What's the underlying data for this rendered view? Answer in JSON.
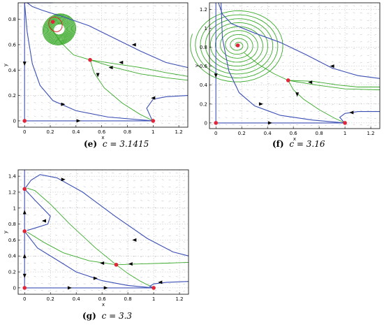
{
  "chart_data": [
    {
      "id": "e",
      "type": "line",
      "caption_label": "(e)",
      "caption_param": "c = 3.1415",
      "xlabel": "x",
      "ylabel": "y",
      "xlim": [
        -0.05,
        1.27
      ],
      "ylim": [
        -0.05,
        0.93
      ],
      "xticks": [
        0,
        0.2,
        0.4,
        0.6,
        0.8,
        1,
        1.2
      ],
      "xtick_labels": [
        "0",
        "0.2",
        "0.4",
        "0.6",
        "0.8",
        "1",
        "1.2"
      ],
      "yticks": [
        0,
        0.2,
        0.4,
        0.6,
        0.8
      ],
      "ytick_labels": [
        "0",
        "0.2",
        "0.4",
        "0.6",
        "0.8"
      ],
      "grid": true,
      "equilibria": [
        {
          "x": 0,
          "y": 0
        },
        {
          "x": 1,
          "y": 0
        },
        {
          "x": 0.51,
          "y": 0.48
        },
        {
          "x": 0.22,
          "y": 0.78
        }
      ],
      "limit_cycle": {
        "cx": 0.24,
        "cy": 0.76,
        "rx": 0.05,
        "ry": 0.06,
        "color": "#d62020"
      },
      "blue_curves": [
        [
          [
            0.02,
            0.93
          ],
          [
            0.06,
            0.9
          ],
          [
            0.14,
            0.87
          ],
          [
            0.3,
            0.82
          ],
          [
            0.5,
            0.75
          ],
          [
            0.7,
            0.65
          ],
          [
            0.9,
            0.55
          ],
          [
            1.1,
            0.46
          ],
          [
            1.27,
            0.42
          ]
        ],
        [
          [
            0.0,
            0.93
          ],
          [
            0.02,
            0.7
          ],
          [
            0.06,
            0.45
          ],
          [
            0.12,
            0.28
          ],
          [
            0.22,
            0.16
          ],
          [
            0.4,
            0.08
          ],
          [
            0.65,
            0.03
          ],
          [
            1.0,
            0.0
          ]
        ],
        [
          [
            0.0,
            0.93
          ],
          [
            0.1,
            0.93
          ],
          [
            0.22,
            0.93
          ]
        ],
        [
          [
            1.27,
            0.2
          ],
          [
            1.1,
            0.19
          ],
          [
            1.0,
            0.17
          ],
          [
            0.95,
            0.1
          ],
          [
            0.99,
            0.01
          ]
        ],
        [
          [
            0.0,
            0.0
          ],
          [
            0.0,
            0.93
          ]
        ],
        [
          [
            0.0,
            0.0
          ],
          [
            1.0,
            0.0
          ]
        ]
      ],
      "green_curves": [
        [
          [
            0.51,
            0.48
          ],
          [
            0.38,
            0.52
          ],
          [
            0.28,
            0.62
          ],
          [
            0.2,
            0.74
          ]
        ],
        [
          [
            0.51,
            0.48
          ],
          [
            0.7,
            0.45
          ],
          [
            0.9,
            0.42
          ],
          [
            1.1,
            0.38
          ],
          [
            1.27,
            0.35
          ]
        ],
        [
          [
            0.51,
            0.48
          ],
          [
            0.7,
            0.42
          ],
          [
            0.9,
            0.37
          ],
          [
            1.1,
            0.34
          ],
          [
            1.27,
            0.32
          ]
        ],
        [
          [
            0.51,
            0.48
          ],
          [
            0.54,
            0.38
          ],
          [
            0.62,
            0.26
          ],
          [
            0.76,
            0.14
          ],
          [
            0.9,
            0.05
          ],
          [
            1.0,
            0.0
          ]
        ]
      ],
      "green_band": {
        "cx": 0.27,
        "cy": 0.72,
        "rx": 0.13,
        "ry": 0.12
      },
      "arrows": [
        {
          "x": 0.0,
          "y": 0.45,
          "dir": "down"
        },
        {
          "x": 0.3,
          "y": 0.13,
          "dir": "right"
        },
        {
          "x": 0.42,
          "y": 0.0,
          "dir": "right"
        },
        {
          "x": 0.85,
          "y": 0.6,
          "dir": "left"
        },
        {
          "x": 0.75,
          "y": 0.46,
          "dir": "left"
        },
        {
          "x": 0.67,
          "y": 0.42,
          "dir": "left"
        },
        {
          "x": 0.57,
          "y": 0.36,
          "dir": "down"
        },
        {
          "x": 1.0,
          "y": 0.18,
          "dir": "left"
        }
      ]
    },
    {
      "id": "f",
      "type": "line",
      "caption_label": "(f)",
      "caption_param": "c = 3.16",
      "xlabel": "x",
      "ylabel": "y",
      "xlim": [
        -0.05,
        1.27
      ],
      "ylim": [
        -0.06,
        1.27
      ],
      "xticks": [
        0,
        0.2,
        0.4,
        0.6,
        0.8,
        1,
        1.2
      ],
      "xtick_labels": [
        "0",
        "0.2",
        "0.4",
        "0.6",
        "0.8",
        "1",
        "1.2"
      ],
      "yticks": [
        0,
        0.2,
        0.4,
        0.6,
        0.8,
        1,
        1.2
      ],
      "ytick_labels": [
        "0",
        "0.2",
        "0.4",
        "0.6",
        "0.8",
        "1",
        "1.2"
      ],
      "grid": true,
      "equilibria": [
        {
          "x": 0,
          "y": 0
        },
        {
          "x": 1,
          "y": 0
        },
        {
          "x": 0.56,
          "y": 0.45
        },
        {
          "x": 0.17,
          "y": 0.82
        }
      ],
      "spiral": {
        "cx": 0.17,
        "cy": 0.82
      },
      "blue_curves": [
        [
          [
            0.02,
            1.27
          ],
          [
            0.05,
            1.15
          ],
          [
            0.12,
            1.05
          ],
          [
            0.3,
            0.95
          ],
          [
            0.5,
            0.85
          ],
          [
            0.7,
            0.72
          ],
          [
            0.9,
            0.58
          ],
          [
            1.1,
            0.5
          ],
          [
            1.27,
            0.47
          ]
        ],
        [
          [
            0.04,
            1.27
          ],
          [
            0.05,
            0.9
          ],
          [
            0.1,
            0.55
          ],
          [
            0.18,
            0.32
          ],
          [
            0.3,
            0.18
          ],
          [
            0.5,
            0.08
          ],
          [
            0.75,
            0.03
          ],
          [
            1.0,
            0.0
          ]
        ],
        [
          [
            1.27,
            0.12
          ],
          [
            1.1,
            0.12
          ],
          [
            1.0,
            0.1
          ],
          [
            0.96,
            0.06
          ],
          [
            0.99,
            0.01
          ]
        ],
        [
          [
            0.0,
            0.0
          ],
          [
            0.0,
            1.27
          ]
        ],
        [
          [
            0.0,
            0.0
          ],
          [
            1.0,
            0.0
          ]
        ]
      ],
      "green_curves": [
        [
          [
            0.56,
            0.45
          ],
          [
            0.45,
            0.52
          ],
          [
            0.33,
            0.62
          ],
          [
            0.22,
            0.74
          ]
        ],
        [
          [
            0.56,
            0.45
          ],
          [
            0.75,
            0.44
          ],
          [
            0.95,
            0.4
          ],
          [
            1.1,
            0.38
          ],
          [
            1.27,
            0.38
          ]
        ],
        [
          [
            0.56,
            0.45
          ],
          [
            0.78,
            0.4
          ],
          [
            1.0,
            0.36
          ],
          [
            1.27,
            0.35
          ]
        ],
        [
          [
            0.56,
            0.45
          ],
          [
            0.6,
            0.35
          ],
          [
            0.68,
            0.25
          ],
          [
            0.8,
            0.14
          ],
          [
            0.92,
            0.05
          ],
          [
            1.0,
            0.0
          ]
        ]
      ],
      "arrows": [
        {
          "x": 0.0,
          "y": 0.5,
          "dir": "down"
        },
        {
          "x": 0.35,
          "y": 0.2,
          "dir": "right"
        },
        {
          "x": 0.42,
          "y": 0.0,
          "dir": "right"
        },
        {
          "x": 0.9,
          "y": 0.6,
          "dir": "left"
        },
        {
          "x": 0.73,
          "y": 0.43,
          "dir": "left"
        },
        {
          "x": 0.63,
          "y": 0.3,
          "dir": "down"
        },
        {
          "x": 1.05,
          "y": 0.11,
          "dir": "left"
        }
      ]
    },
    {
      "id": "g",
      "type": "line",
      "caption_label": "(g)",
      "caption_param": "c = 3.3",
      "xlabel": "x",
      "ylabel": "y",
      "xlim": [
        -0.05,
        1.27
      ],
      "ylim": [
        -0.08,
        1.48
      ],
      "xticks": [
        0,
        0.2,
        0.4,
        0.6,
        0.8,
        1,
        1.2
      ],
      "xtick_labels": [
        "0",
        "0.2",
        "0.4",
        "0.6",
        "0.8",
        "1",
        "1.2"
      ],
      "yticks": [
        0,
        0.2,
        0.4,
        0.6,
        0.8,
        1,
        1.2,
        1.4
      ],
      "ytick_labels": [
        "0",
        "0.2",
        "0.4",
        "0.6",
        "0.8",
        "1",
        "1.2",
        "1.4"
      ],
      "grid": true,
      "equilibria": [
        {
          "x": 0,
          "y": 0
        },
        {
          "x": 1,
          "y": 0
        },
        {
          "x": 0,
          "y": 0.71
        },
        {
          "x": 0,
          "y": 1.24
        },
        {
          "x": 0.71,
          "y": 0.29
        }
      ],
      "blue_curves": [
        [
          [
            0.0,
            1.24
          ],
          [
            0.05,
            1.35
          ],
          [
            0.12,
            1.42
          ],
          [
            0.25,
            1.38
          ],
          [
            0.45,
            1.2
          ],
          [
            0.7,
            0.9
          ],
          [
            0.95,
            0.62
          ],
          [
            1.15,
            0.45
          ],
          [
            1.27,
            0.4
          ]
        ],
        [
          [
            0.0,
            1.24
          ],
          [
            0.08,
            1.1
          ],
          [
            0.2,
            0.9
          ],
          [
            0.18,
            0.8
          ],
          [
            0.1,
            0.76
          ],
          [
            0.02,
            0.72
          ]
        ],
        [
          [
            0.0,
            0.71
          ],
          [
            0.1,
            0.5
          ],
          [
            0.25,
            0.35
          ],
          [
            0.4,
            0.2
          ],
          [
            0.6,
            0.09
          ],
          [
            0.8,
            0.03
          ],
          [
            1.0,
            0.0
          ]
        ],
        [
          [
            1.27,
            0.08
          ],
          [
            1.1,
            0.07
          ],
          [
            1.0,
            0.05
          ],
          [
            0.97,
            0.02
          ],
          [
            1.0,
            0.0
          ]
        ],
        [
          [
            0.0,
            0.0
          ],
          [
            0.0,
            1.48
          ]
        ],
        [
          [
            0.0,
            0.0
          ],
          [
            1.0,
            0.0
          ]
        ]
      ],
      "green_curves": [
        [
          [
            0.71,
            0.29
          ],
          [
            0.55,
            0.5
          ],
          [
            0.35,
            0.8
          ],
          [
            0.2,
            1.05
          ],
          [
            0.08,
            1.22
          ],
          [
            0.02,
            1.25
          ]
        ],
        [
          [
            0.71,
            0.29
          ],
          [
            0.5,
            0.34
          ],
          [
            0.3,
            0.44
          ],
          [
            0.15,
            0.57
          ],
          [
            0.02,
            0.7
          ]
        ],
        [
          [
            0.71,
            0.29
          ],
          [
            0.9,
            0.3
          ],
          [
            1.1,
            0.31
          ],
          [
            1.27,
            0.32
          ]
        ],
        [
          [
            0.71,
            0.29
          ],
          [
            0.8,
            0.18
          ],
          [
            0.9,
            0.08
          ],
          [
            1.0,
            0.0
          ]
        ]
      ],
      "arrows": [
        {
          "x": 0.0,
          "y": 0.95,
          "dir": "up"
        },
        {
          "x": 0.0,
          "y": 0.4,
          "dir": "up"
        },
        {
          "x": 0.0,
          "y": 0.15,
          "dir": "down"
        },
        {
          "x": 0.35,
          "y": 0.0,
          "dir": "right"
        },
        {
          "x": 0.63,
          "y": 0.0,
          "dir": "right"
        },
        {
          "x": 0.3,
          "y": 1.36,
          "dir": "right"
        },
        {
          "x": 0.15,
          "y": 0.84,
          "dir": "left"
        },
        {
          "x": 0.55,
          "y": 0.12,
          "dir": "right"
        },
        {
          "x": 0.85,
          "y": 0.6,
          "dir": "left"
        },
        {
          "x": 0.82,
          "y": 0.3,
          "dir": "left"
        },
        {
          "x": 0.6,
          "y": 0.31,
          "dir": "left"
        },
        {
          "x": 1.05,
          "y": 0.07,
          "dir": "left"
        }
      ]
    }
  ]
}
